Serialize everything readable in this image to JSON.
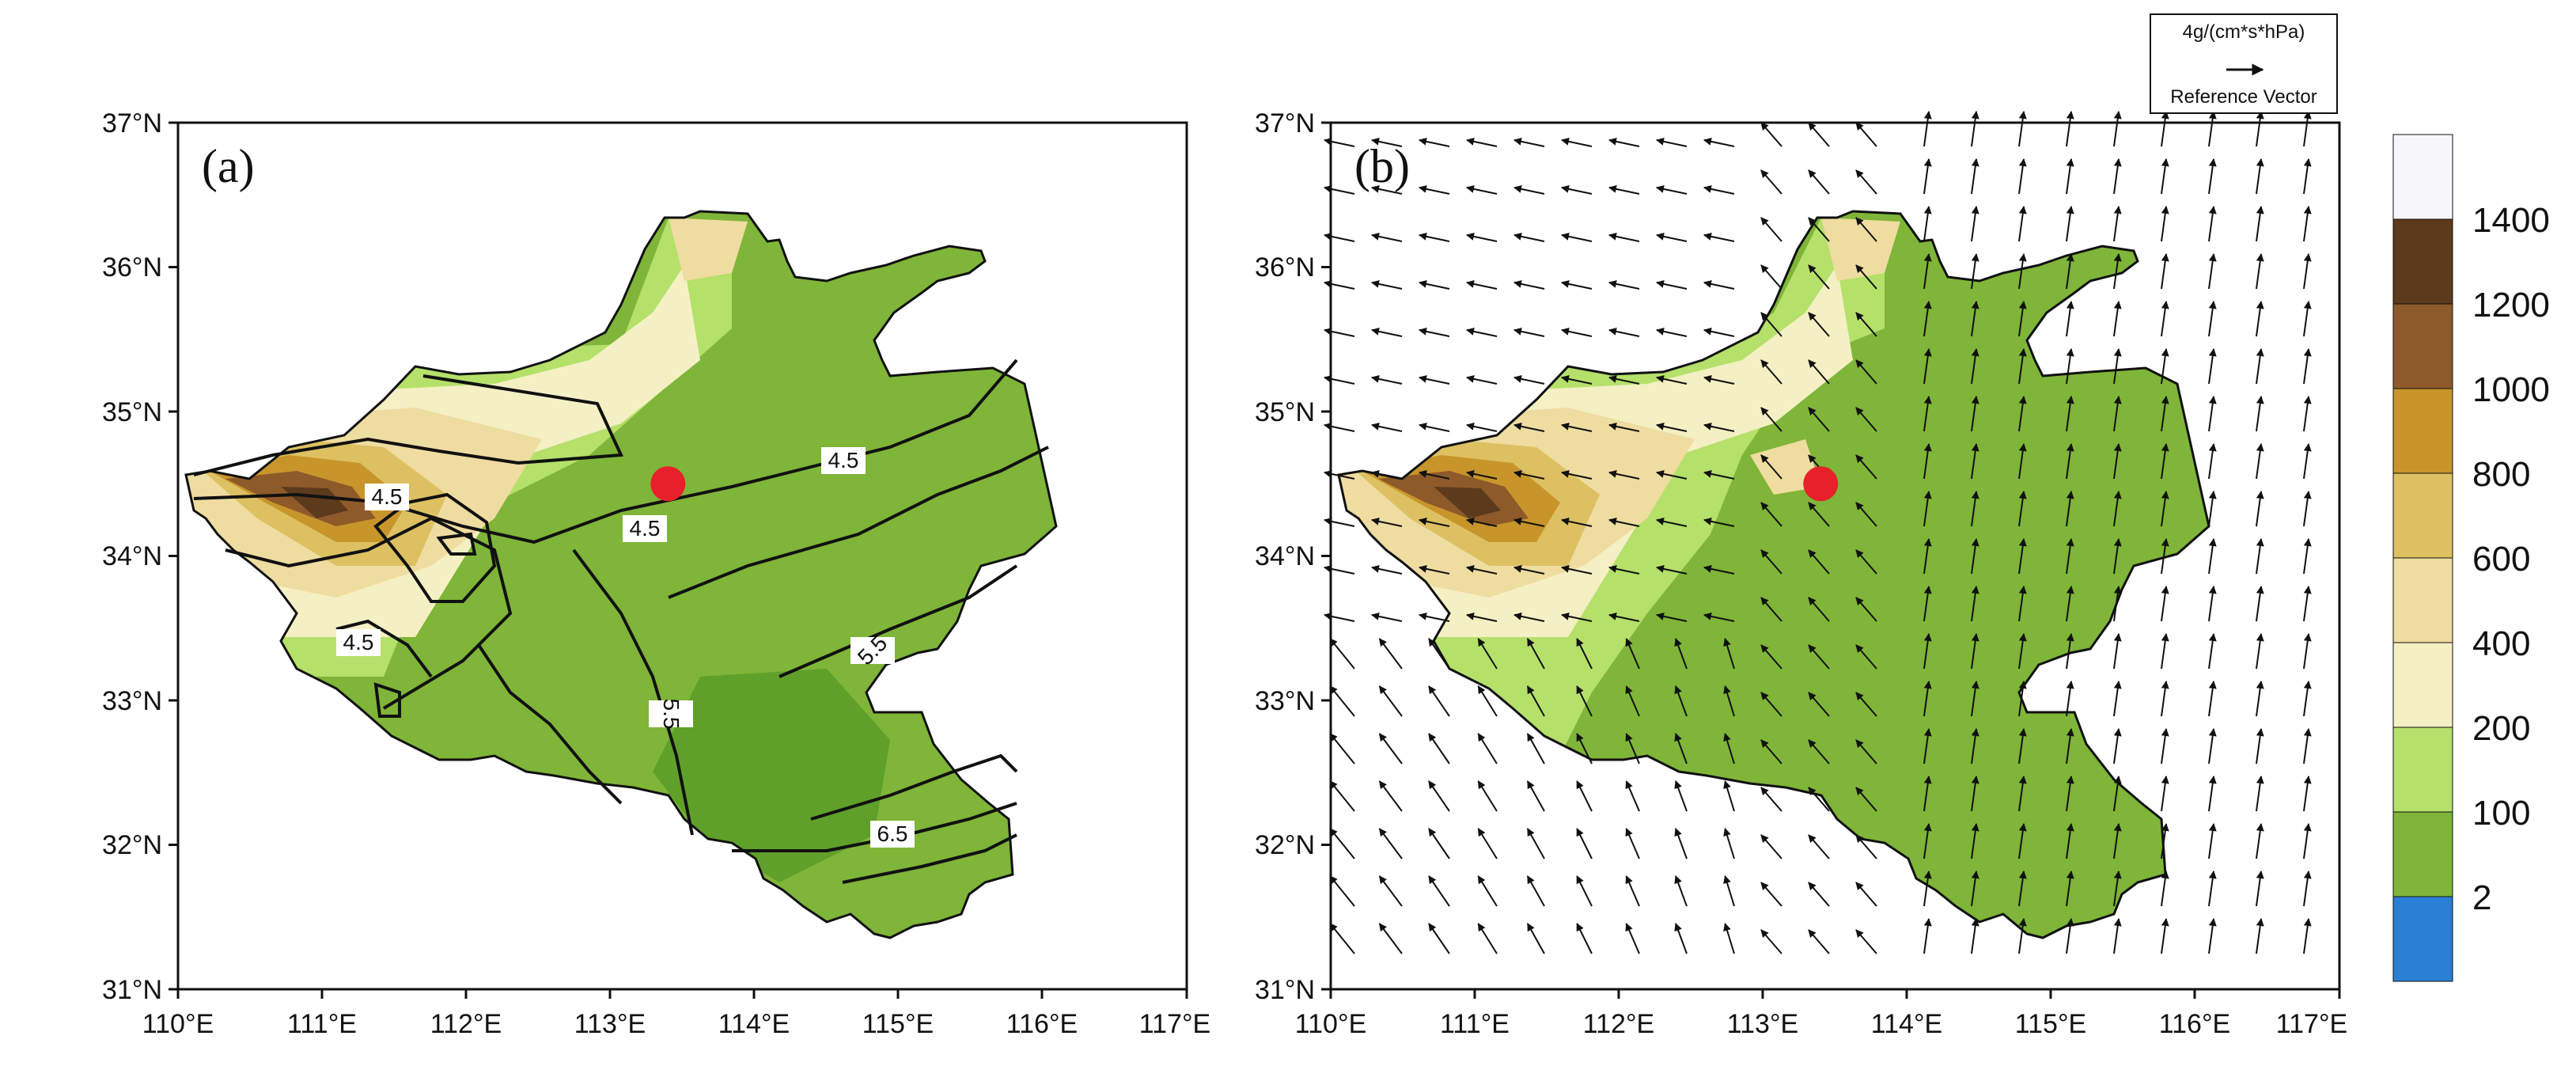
{
  "panels": [
    {
      "id": "a",
      "label": "(a)",
      "lat_labels": [
        "37°N",
        "36°N",
        "35°N",
        "34°N",
        "33°N",
        "32°N",
        "31°N"
      ],
      "lon_labels": [
        "110°E",
        "111°E",
        "112°E",
        "113°E",
        "114°E",
        "115°E",
        "116°E",
        "117°E"
      ],
      "contour_labels": [
        "4.5",
        "4.5",
        "4.5",
        "4.5",
        "5.5",
        "5.5",
        "6.5"
      ],
      "station_marker": {
        "lon": 113.4,
        "lat": 34.5,
        "color": "#e8202a"
      }
    },
    {
      "id": "b",
      "label": "(b)",
      "lat_labels": [
        "37°N",
        "36°N",
        "35°N",
        "34°N",
        "33°N",
        "32°N",
        "31°N"
      ],
      "lon_labels": [
        "110°E",
        "111°E",
        "112°E",
        "113°E",
        "114°E",
        "115°E",
        "116°E",
        "117°E"
      ],
      "station_marker": {
        "lon": 113.4,
        "lat": 34.5,
        "color": "#e8202a"
      }
    }
  ],
  "map_extent": {
    "lon": [
      110,
      117
    ],
    "lat": [
      31,
      37
    ]
  },
  "reference_vector": {
    "magnitude_label": "4g/(cm*s*hPa)",
    "caption": "Reference Vector"
  },
  "colorbar": {
    "labels": [
      "1400",
      "1200",
      "1000",
      "800",
      "600",
      "400",
      "200",
      "100",
      "2"
    ],
    "colors": [
      "#f7f7fb",
      "#5c3a1c",
      "#8e5a2a",
      "#c8952a",
      "#ddc062",
      "#efdca0",
      "#f4f0c4",
      "#b5e06a",
      "#7fb538",
      "#2a7fd4"
    ]
  },
  "icons": {
    "station": "station-marker-icon",
    "vector": "arrow-icon"
  }
}
